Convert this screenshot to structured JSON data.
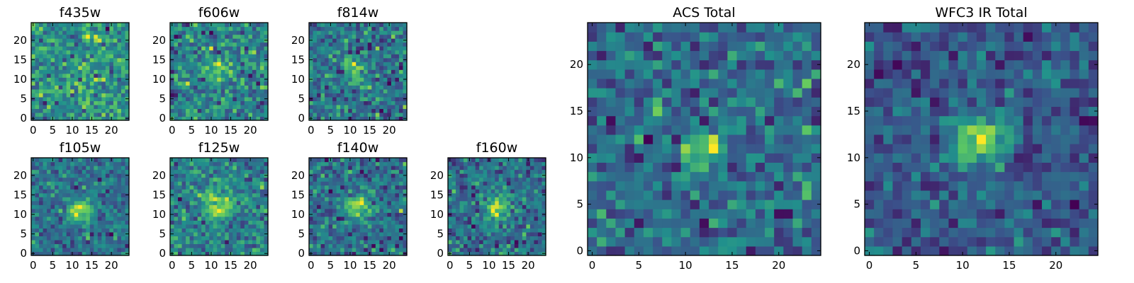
{
  "figure": {
    "description_free": true
  },
  "colormap": {
    "name": "viridis",
    "stops": [
      "#440154",
      "#3b528b",
      "#21918c",
      "#5ec962",
      "#fde725"
    ]
  },
  "chart_data": [
    {
      "type": "heatmap",
      "title": "f435w",
      "grid": 25,
      "xlim": [
        -0.5,
        24.5
      ],
      "ylim": [
        -0.5,
        24.5
      ],
      "xticks": [
        0,
        5,
        10,
        15,
        20
      ],
      "yticks": [
        0,
        5,
        10,
        15,
        20
      ],
      "source_center": [
        12,
        12
      ],
      "source_strength": 0.05,
      "source_sigma": 2.5,
      "noise_amp": 0.45,
      "seed": 11
    },
    {
      "type": "heatmap",
      "title": "f606w",
      "grid": 25,
      "xlim": [
        -0.5,
        24.5
      ],
      "ylim": [
        -0.5,
        24.5
      ],
      "xticks": [
        0,
        5,
        10,
        15,
        20
      ],
      "yticks": [
        0,
        5,
        10,
        15,
        20
      ],
      "source_center": [
        12,
        13
      ],
      "source_strength": 0.22,
      "source_sigma": 2.0,
      "noise_amp": 0.4,
      "seed": 23
    },
    {
      "type": "heatmap",
      "title": "f814w",
      "grid": 25,
      "xlim": [
        -0.5,
        24.5
      ],
      "ylim": [
        -0.5,
        24.5
      ],
      "xticks": [
        0,
        5,
        10,
        15,
        20
      ],
      "yticks": [
        0,
        5,
        10,
        15,
        20
      ],
      "source_center": [
        11,
        12
      ],
      "source_strength": 0.3,
      "source_sigma": 2.0,
      "noise_amp": 0.4,
      "seed": 37
    },
    {
      "type": "heatmap",
      "title": "f105w",
      "grid": 25,
      "xlim": [
        -0.5,
        24.5
      ],
      "ylim": [
        -0.5,
        24.5
      ],
      "xticks": [
        0,
        5,
        10,
        15,
        20
      ],
      "yticks": [
        0,
        5,
        10,
        15,
        20
      ],
      "source_center": [
        12,
        11
      ],
      "source_strength": 0.45,
      "source_sigma": 2.2,
      "noise_amp": 0.3,
      "seed": 41
    },
    {
      "type": "heatmap",
      "title": "f125w",
      "grid": 25,
      "xlim": [
        -0.5,
        24.5
      ],
      "ylim": [
        -0.5,
        24.5
      ],
      "xticks": [
        0,
        5,
        10,
        15,
        20
      ],
      "yticks": [
        0,
        5,
        10,
        15,
        20
      ],
      "source_center": [
        12,
        12
      ],
      "source_strength": 0.4,
      "source_sigma": 2.5,
      "noise_amp": 0.32,
      "seed": 53
    },
    {
      "type": "heatmap",
      "title": "f140w",
      "grid": 25,
      "xlim": [
        -0.5,
        24.5
      ],
      "ylim": [
        -0.5,
        24.5
      ],
      "xticks": [
        0,
        5,
        10,
        15,
        20
      ],
      "yticks": [
        0,
        5,
        10,
        15,
        20
      ],
      "source_center": [
        12,
        12
      ],
      "source_strength": 0.42,
      "source_sigma": 2.3,
      "noise_amp": 0.33,
      "seed": 67
    },
    {
      "type": "heatmap",
      "title": "f160w",
      "grid": 25,
      "xlim": [
        -0.5,
        24.5
      ],
      "ylim": [
        -0.5,
        24.5
      ],
      "xticks": [
        0,
        5,
        10,
        15,
        20
      ],
      "yticks": [
        0,
        5,
        10,
        15,
        20
      ],
      "source_center": [
        12,
        12
      ],
      "source_strength": 0.45,
      "source_sigma": 2.3,
      "noise_amp": 0.33,
      "seed": 79
    },
    {
      "type": "heatmap",
      "title": "ACS Total",
      "grid": 25,
      "xlim": [
        -0.5,
        24.5
      ],
      "ylim": [
        -0.5,
        24.5
      ],
      "xticks": [
        0,
        5,
        10,
        15,
        20
      ],
      "yticks": [
        0,
        5,
        10,
        15,
        20
      ],
      "source_center": [
        12,
        11
      ],
      "source_strength": 0.35,
      "source_sigma": 1.6,
      "noise_amp": 0.3,
      "seed": 97
    },
    {
      "type": "heatmap",
      "title": "WFC3 IR Total",
      "grid": 25,
      "xlim": [
        -0.5,
        24.5
      ],
      "ylim": [
        -0.5,
        24.5
      ],
      "xticks": [
        0,
        5,
        10,
        15,
        20
      ],
      "yticks": [
        0,
        5,
        10,
        15,
        20
      ],
      "source_center": [
        12,
        12
      ],
      "source_strength": 0.55,
      "source_sigma": 1.8,
      "noise_amp": 0.25,
      "seed": 131
    }
  ]
}
